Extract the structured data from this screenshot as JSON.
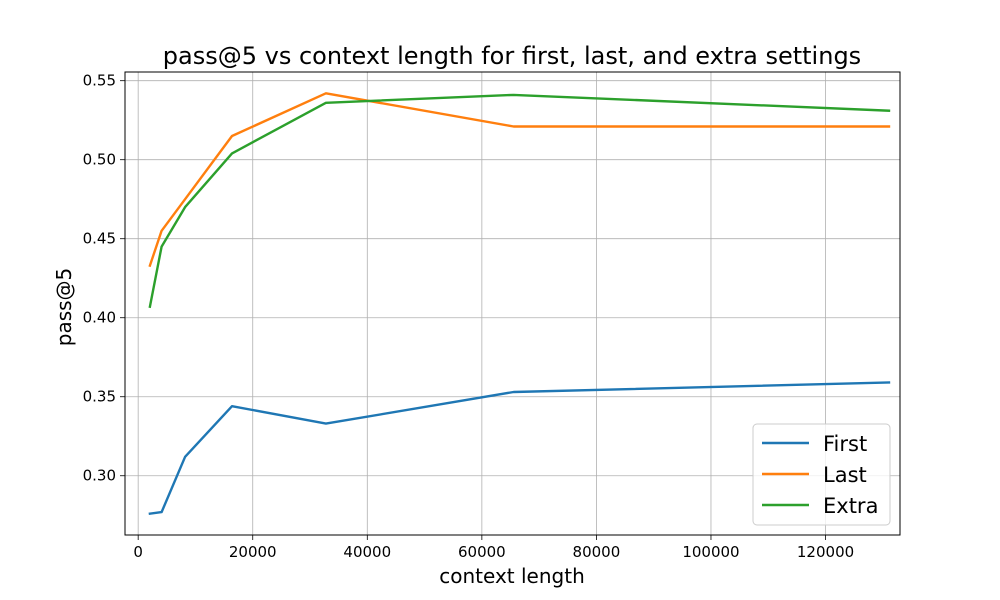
{
  "chart_data": {
    "type": "line",
    "title": "pass@5 vs context length for first, last, and extra settings",
    "xlabel": "context length",
    "ylabel": "pass@5",
    "xlim": [
      -2300,
      133000
    ],
    "ylim": [
      0.2625,
      0.5555
    ],
    "x_ticks": [
      0,
      20000,
      40000,
      60000,
      80000,
      100000,
      120000
    ],
    "x_tick_labels": [
      "0",
      "20000",
      "40000",
      "60000",
      "80000",
      "100000",
      "120000"
    ],
    "y_ticks": [
      0.3,
      0.35,
      0.4,
      0.45,
      0.5,
      0.55
    ],
    "y_tick_labels": [
      "0.30",
      "0.35",
      "0.40",
      "0.45",
      "0.50",
      "0.55"
    ],
    "grid": true,
    "legend_position": "lower-right",
    "x": [
      2048,
      4096,
      8192,
      16384,
      32768,
      65536,
      131072
    ],
    "series": [
      {
        "name": "First",
        "color": "#1f77b4",
        "values": [
          0.276,
          0.277,
          0.312,
          0.344,
          0.333,
          0.353,
          0.359
        ]
      },
      {
        "name": "Last",
        "color": "#ff7f0e",
        "values": [
          0.433,
          0.455,
          0.475,
          0.515,
          0.542,
          0.521,
          0.521
        ]
      },
      {
        "name": "Extra",
        "color": "#2ca02c",
        "values": [
          0.407,
          0.445,
          0.47,
          0.504,
          0.536,
          0.541,
          0.531
        ]
      }
    ]
  }
}
